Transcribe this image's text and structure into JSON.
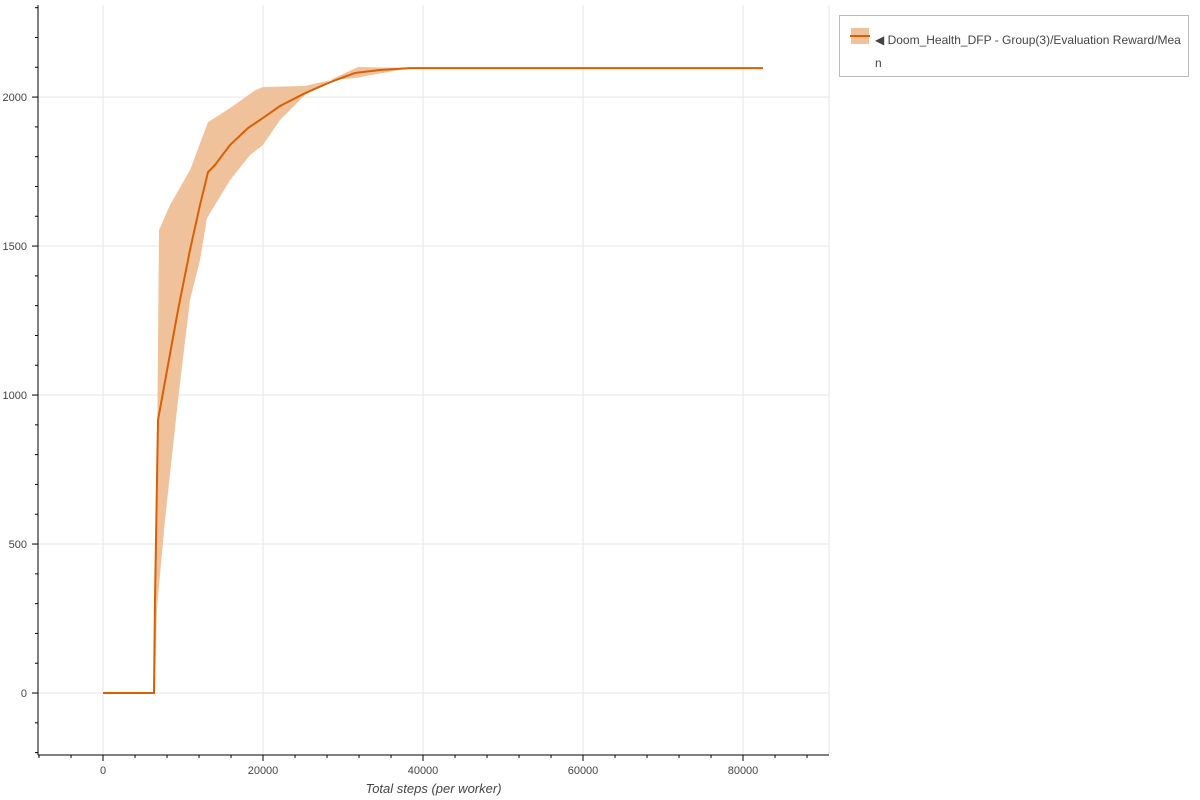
{
  "chart_data": {
    "type": "line",
    "title": "",
    "xlabel": "Total steps (per worker)",
    "ylabel": "",
    "xlim": [
      -8125,
      90750
    ],
    "ylim": [
      -208,
      2309
    ],
    "grid": true,
    "legend_placement": "outside-right",
    "xticks": [
      0,
      20000,
      40000,
      60000,
      80000
    ],
    "yticks": [
      0,
      500,
      1000,
      1500,
      2000
    ],
    "series": [
      {
        "name": "◀ Doom_Health_DFP - Group(3)/Evaluation Reward/Mean",
        "color": "#d95f02",
        "band_color": "#f0c29c",
        "x": [
          0,
          6375,
          6500,
          6875,
          8125,
          9375,
          10875,
          12125,
          13125,
          14000,
          15875,
          18125,
          20000,
          22125,
          25250,
          28375,
          31500,
          34625,
          38375,
          82500
        ],
        "y": [
          0,
          0,
          312,
          916,
          1101,
          1285,
          1487,
          1638,
          1748,
          1772,
          1839,
          1896,
          1930,
          1970,
          2013,
          2050,
          2081,
          2091,
          2097,
          2097
        ],
        "band_upper": {
          "x": [
            6500,
            7000,
            8375,
            10875,
            13125,
            15875,
            19000,
            20000,
            25250,
            28375,
            31875,
            38375,
            82500
          ],
          "y": [
            10,
            1554,
            1638,
            1755,
            1916,
            1963,
            2023,
            2034,
            2037,
            2057,
            2101,
            2097,
            2097
          ]
        },
        "band_lower": {
          "x": [
            6500,
            6750,
            7750,
            9375,
            10875,
            12125,
            13000,
            15875,
            18375,
            20000,
            22125,
            25250,
            28375,
            31500,
            38375,
            82500
          ],
          "y": [
            10,
            285,
            580,
            983,
            1319,
            1453,
            1594,
            1721,
            1805,
            1839,
            1923,
            2007,
            2057,
            2064,
            2097,
            2097
          ]
        }
      }
    ]
  }
}
